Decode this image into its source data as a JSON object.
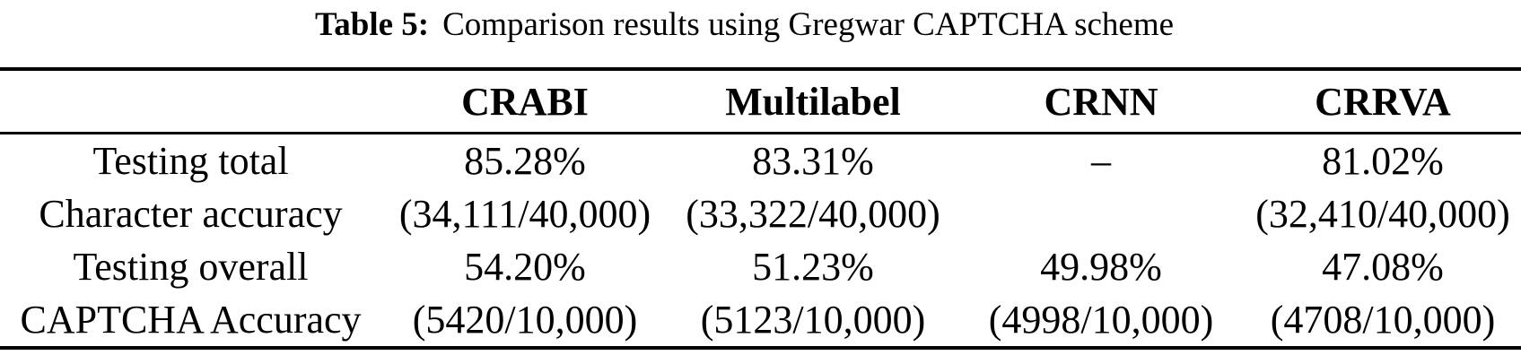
{
  "caption": {
    "label": "Table 5:",
    "text": "Comparison results using Gregwar CAPTCHA scheme"
  },
  "table": {
    "columns": [
      "",
      "CRABI",
      "Multilabel",
      "CRNN",
      "CRRVA"
    ],
    "rows": [
      {
        "label": "Testing total",
        "values": [
          "85.28%",
          "83.31%",
          "–",
          "81.02%"
        ]
      },
      {
        "label": "Character accuracy",
        "values": [
          "(34,111/40,000)",
          "(33,322/40,000)",
          "",
          "(32,410/40,000)"
        ]
      },
      {
        "label": "Testing overall",
        "values": [
          "54.20%",
          "51.23%",
          "49.98%",
          "47.08%"
        ]
      },
      {
        "label": "CAPTCHA Accuracy",
        "values": [
          "(5420/10,000)",
          "(5123/10,000)",
          "(4998/10,000)",
          "(4708/10,000)"
        ]
      }
    ]
  },
  "chart_data": {
    "type": "table",
    "title": "Table 5: Comparison results using Gregwar CAPTCHA scheme",
    "columns": [
      "",
      "CRABI",
      "Multilabel",
      "CRNN",
      "CRRVA"
    ],
    "rows": [
      [
        "Testing total",
        "85.28%",
        "83.31%",
        "–",
        "81.02%"
      ],
      [
        "Character accuracy",
        "(34,111/40,000)",
        "(33,322/40,000)",
        "",
        "(32,410/40,000)"
      ],
      [
        "Testing overall",
        "54.20%",
        "51.23%",
        "49.98%",
        "47.08%"
      ],
      [
        "CAPTCHA Accuracy",
        "(5420/10,000)",
        "(5123/10,000)",
        "(4998/10,000)",
        "(4708/10,000)"
      ]
    ]
  },
  "colors": {
    "background": "#ffffff",
    "text": "#000000",
    "rule": "#000000"
  }
}
